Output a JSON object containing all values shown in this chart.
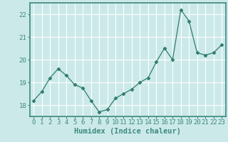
{
  "x": [
    0,
    1,
    2,
    3,
    4,
    5,
    6,
    7,
    8,
    9,
    10,
    11,
    12,
    13,
    14,
    15,
    16,
    17,
    18,
    19,
    20,
    21,
    22,
    23
  ],
  "y": [
    18.2,
    18.6,
    19.2,
    19.6,
    19.3,
    18.9,
    18.75,
    18.2,
    17.7,
    17.8,
    18.3,
    18.5,
    18.7,
    19.0,
    19.2,
    19.9,
    20.5,
    20.0,
    22.2,
    21.7,
    20.3,
    20.2,
    20.3,
    20.65
  ],
  "line_color": "#2e7d6e",
  "marker": "D",
  "marker_size": 2.5,
  "bg_color": "#cce9e9",
  "grid_color": "#ffffff",
  "spine_color": "#3d8a80",
  "xlabel": "Humidex (Indice chaleur)",
  "ylim": [
    17.5,
    22.5
  ],
  "xlim": [
    -0.5,
    23.5
  ],
  "yticks": [
    18,
    19,
    20,
    21,
    22
  ],
  "xticks": [
    0,
    1,
    2,
    3,
    4,
    5,
    6,
    7,
    8,
    9,
    10,
    11,
    12,
    13,
    14,
    15,
    16,
    17,
    18,
    19,
    20,
    21,
    22,
    23
  ],
  "tick_fontsize": 6.5,
  "xlabel_fontsize": 7.5
}
